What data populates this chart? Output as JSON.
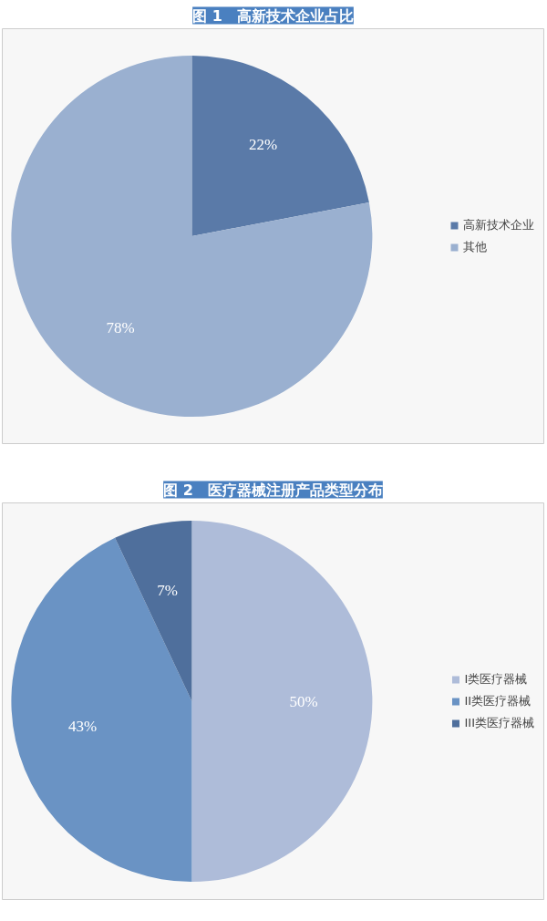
{
  "chart_data": [
    {
      "type": "pie",
      "title": "图 1　高新技术企业占比",
      "categories": [
        "高新技术企业",
        "其他"
      ],
      "values": [
        22,
        78
      ],
      "colors": [
        "#5a7aa8",
        "#9ab0d0"
      ],
      "value_labels": [
        "22%",
        "78%"
      ],
      "legend": "right"
    },
    {
      "type": "pie",
      "title": "图 2　医疗器械注册产品类型分布",
      "categories": [
        "I类医疗器械",
        "II类医疗器械",
        "III类医疗器械"
      ],
      "values": [
        50,
        43,
        7
      ],
      "colors": [
        "#aebcd9",
        "#6a93c4",
        "#4f6f9c"
      ],
      "value_labels": [
        "50%",
        "43%",
        "7%"
      ],
      "legend": "right"
    }
  ]
}
